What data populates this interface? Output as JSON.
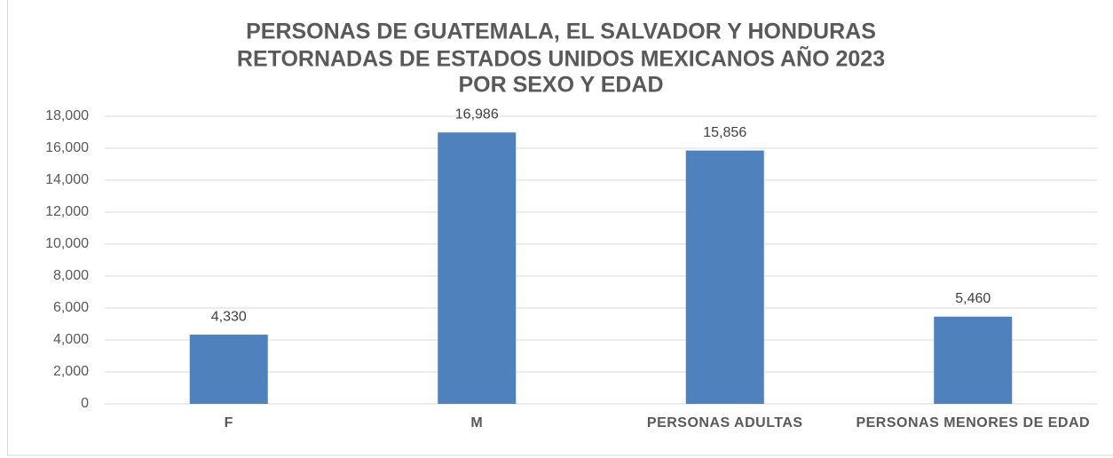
{
  "chart_data": {
    "type": "bar",
    "title": [
      "PERSONAS DE GUATEMALA,  EL SALVADOR Y HONDURAS",
      "RETORNADAS DE ESTADOS UNIDOS MEXICANOS AÑO 2023",
      "POR SEXO Y EDAD"
    ],
    "categories": [
      "F",
      "M",
      "PERSONAS ADULTAS",
      "PERSONAS MENORES DE EDAD"
    ],
    "values": [
      4330,
      16986,
      15856,
      5460
    ],
    "value_labels": [
      "4,330",
      "16,986",
      "15,856",
      "5,460"
    ],
    "color": "#4f81bd",
    "ylim": [
      0,
      18000
    ],
    "yticks": [
      0,
      {
        "value": 2000,
        "label": "2,000"
      },
      {
        "value": 4000,
        "label": "4,000"
      },
      {
        "value": 6000,
        "label": "6,000"
      },
      {
        "value": 8000,
        "label": "8,000"
      },
      {
        "value": 10000,
        "label": "10,000"
      },
      {
        "value": 12000,
        "label": "12,000"
      },
      {
        "value": 14000,
        "label": "14,000"
      },
      {
        "value": 16000,
        "label": "16,000"
      },
      {
        "value": 18000,
        "label": "18,000"
      }
    ],
    "grid": true
  }
}
